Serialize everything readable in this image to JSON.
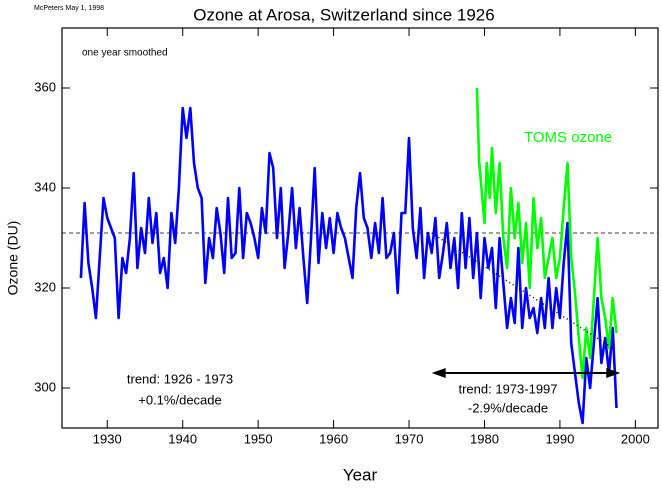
{
  "chart_data": {
    "type": "line",
    "credit": "McPeters May 1, 1998",
    "title": "Ozone at Arosa, Switzerland since 1926",
    "subtitle": "one year smoothed",
    "xlabel": "Year",
    "ylabel": "Ozone (DU)",
    "xlim": [
      1924,
      2003
    ],
    "ylim": [
      292,
      372
    ],
    "xticks": [
      1930,
      1940,
      1950,
      1960,
      1970,
      1980,
      1990,
      2000
    ],
    "yticks": [
      300,
      320,
      340,
      360
    ],
    "mean_line": 331,
    "trend_line": {
      "x": [
        1973,
        1997
      ],
      "y": [
        331,
        308
      ]
    },
    "arrow": {
      "x": [
        1973,
        1998
      ],
      "y": 303
    },
    "annotations": [
      "TOMS ozone",
      "trend: 1926 - 1973",
      "+0.1%/decade",
      "trend: 1973-1997",
      "-2.9%/decade"
    ],
    "series": [
      {
        "name": "Arosa",
        "color": "#0000ff",
        "x": [
          1926.5,
          1927,
          1927.5,
          1928,
          1928.5,
          1929,
          1929.5,
          1930,
          1930.5,
          1931,
          1931.5,
          1932,
          1932.5,
          1933,
          1933.5,
          1934,
          1934.5,
          1935,
          1935.5,
          1936,
          1936.5,
          1937,
          1937.5,
          1938,
          1938.5,
          1939,
          1939.5,
          1940,
          1940.5,
          1941,
          1941.5,
          1942,
          1942.5,
          1943,
          1943.5,
          1944,
          1944.5,
          1945,
          1945.5,
          1946,
          1946.5,
          1947,
          1947.5,
          1948,
          1948.5,
          1949,
          1949.5,
          1950,
          1950.5,
          1951,
          1951.5,
          1952,
          1952.5,
          1953,
          1953.5,
          1954,
          1954.5,
          1955,
          1955.5,
          1956,
          1956.5,
          1957,
          1957.5,
          1958,
          1958.5,
          1959,
          1959.5,
          1960,
          1960.5,
          1961,
          1961.5,
          1962,
          1962.5,
          1963,
          1963.5,
          1964,
          1964.5,
          1965,
          1965.5,
          1966,
          1966.5,
          1967,
          1967.5,
          1968,
          1968.5,
          1969,
          1969.5,
          1970,
          1970.5,
          1971,
          1971.5,
          1972,
          1972.5,
          1973,
          1973.5,
          1974,
          1974.5,
          1975,
          1975.5,
          1976,
          1976.5,
          1977,
          1977.5,
          1978,
          1978.5,
          1979,
          1979.5,
          1980,
          1980.5,
          1981,
          1981.5,
          1982,
          1982.5,
          1983,
          1983.5,
          1984,
          1984.5,
          1985,
          1985.5,
          1986,
          1986.5,
          1987,
          1987.5,
          1988,
          1988.5,
          1989,
          1989.5,
          1990,
          1990.5,
          1991,
          1991.5,
          1992,
          1992.5,
          1993,
          1993.5,
          1994,
          1994.5,
          1995,
          1995.5,
          1996,
          1996.5,
          1997,
          1997.5
        ],
        "values": [
          322,
          337,
          325,
          320,
          314,
          326,
          338,
          334,
          332,
          330,
          314,
          326,
          323,
          330,
          343,
          324,
          332,
          327,
          338,
          329,
          335,
          323,
          326,
          320,
          335,
          329,
          340,
          356,
          350,
          356,
          345,
          340,
          338,
          321,
          330,
          326,
          336,
          331,
          323,
          338,
          326,
          327,
          340,
          326,
          335,
          333,
          330,
          326,
          336,
          331,
          347,
          344,
          330,
          340,
          324,
          331,
          340,
          328,
          336,
          326,
          317,
          330,
          344,
          325,
          335,
          328,
          334,
          327,
          335,
          332,
          330,
          326,
          322,
          336,
          343,
          334,
          332,
          326,
          333,
          327,
          338,
          326,
          327,
          331,
          319,
          335,
          335,
          350,
          332,
          326,
          336,
          322,
          331,
          327,
          334,
          322,
          327,
          333,
          324,
          330,
          320,
          335,
          324,
          334,
          322,
          331,
          318,
          330,
          324,
          328,
          316,
          330,
          321,
          312,
          318,
          313,
          328,
          312,
          320,
          314,
          316,
          311,
          318,
          312,
          322,
          312,
          320,
          314,
          325,
          333,
          309,
          303,
          297,
          293,
          306,
          300,
          309,
          318,
          305,
          310,
          303,
          312,
          296
        ]
      },
      {
        "name": "TOMS",
        "color": "#00ff00",
        "x": [
          1979,
          1979.3,
          1979.6,
          1980,
          1980.3,
          1980.7,
          1981,
          1981.5,
          1982,
          1982.5,
          1983,
          1983.5,
          1984,
          1984.5,
          1985,
          1985.5,
          1986,
          1986.5,
          1987,
          1987.5,
          1988,
          1988.5,
          1989,
          1989.5,
          1990,
          1990.5,
          1991,
          1991.5,
          1992,
          1992.5,
          1993,
          1993.5,
          1994,
          1994.5,
          1995,
          1995.5,
          1996,
          1996.5,
          1997,
          1997.5
        ],
        "values": [
          360,
          345,
          340,
          333,
          345,
          338,
          348,
          335,
          345,
          330,
          324,
          340,
          330,
          337,
          325,
          333,
          320,
          338,
          328,
          334,
          322,
          326,
          330,
          322,
          326,
          336,
          345,
          326,
          319,
          310,
          302,
          312,
          306,
          318,
          330,
          318,
          314,
          308,
          318,
          311
        ]
      }
    ]
  }
}
